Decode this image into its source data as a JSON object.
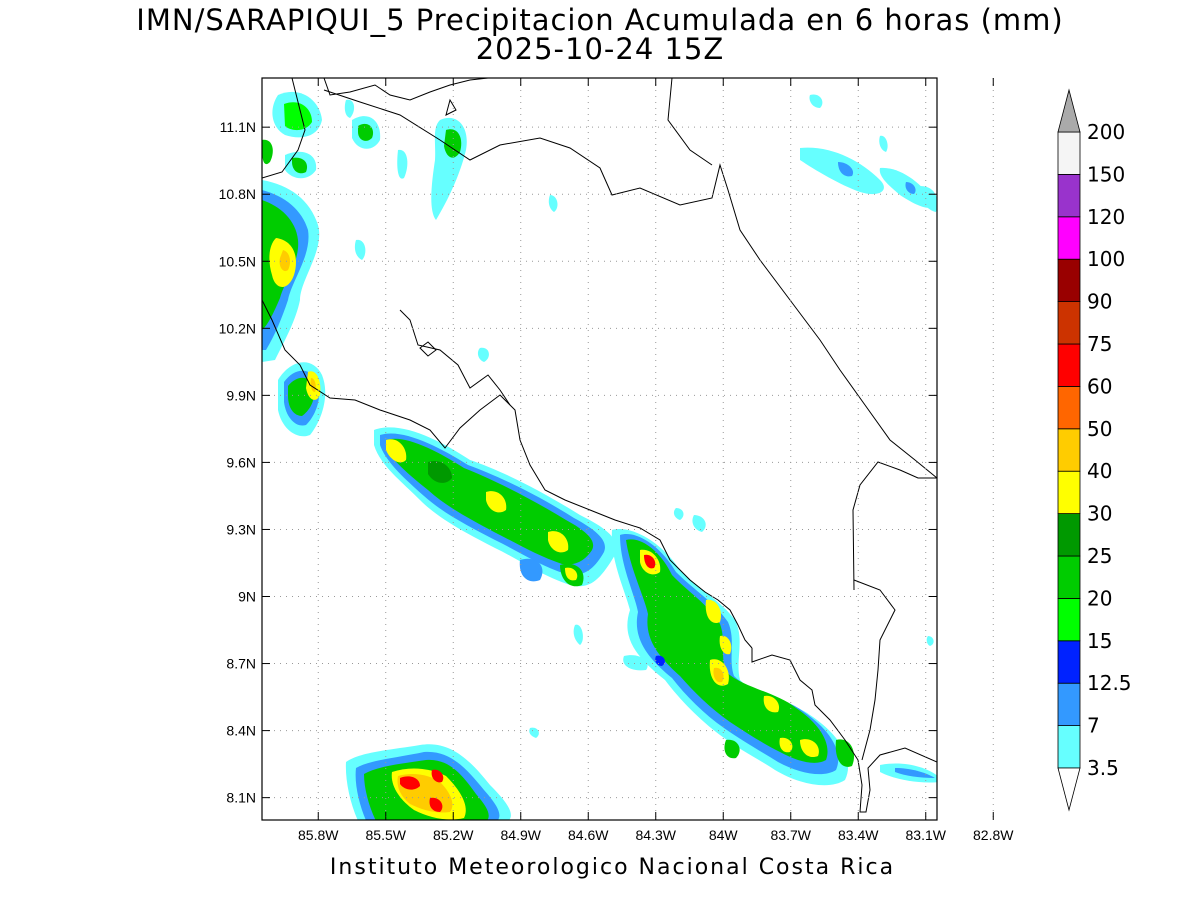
{
  "title": {
    "line1": "IMN/SARAPIQUI_5 Precipitacion Acumulada en 6 horas (mm)",
    "line2": "2025-10-24 15Z"
  },
  "footer": "Instituto Meteorologico Nacional Costa Rica",
  "map": {
    "lat_ticks": [
      "11.1N",
      "10.8N",
      "10.5N",
      "10.2N",
      "9.9N",
      "9.6N",
      "9.3N",
      "9N",
      "8.7N",
      "8.4N",
      "8.1N"
    ],
    "lat_values": [
      11.1,
      10.8,
      10.5,
      10.2,
      9.9,
      9.6,
      9.3,
      9.0,
      8.7,
      8.4,
      8.1
    ],
    "lon_ticks": [
      "85.8W",
      "85.5W",
      "85.2W",
      "84.9W",
      "84.6W",
      "84.3W",
      "84W",
      "83.7W",
      "83.4W",
      "83.1W",
      "82.8W"
    ],
    "lon_values": [
      -85.8,
      -85.5,
      -85.2,
      -84.9,
      -84.6,
      -84.3,
      -84.0,
      -83.7,
      -83.4,
      -83.1,
      -82.8
    ],
    "extent": {
      "lon_min": -86.05,
      "lon_max": -83.05,
      "lat_min": 8.0,
      "lat_max": 11.32
    },
    "grid": true
  },
  "colorbar": {
    "levels": [
      "3.5",
      "7",
      "12.5",
      "15",
      "20",
      "25",
      "30",
      "40",
      "50",
      "60",
      "75",
      "90",
      "100",
      "120",
      "150",
      "200"
    ],
    "colors": [
      "#66ffff",
      "#3399ff",
      "#0022ff",
      "#00ff00",
      "#00cc00",
      "#009900",
      "#ffff00",
      "#ffcc00",
      "#ff6600",
      "#ff0000",
      "#cc3300",
      "#990000",
      "#ff00ff",
      "#9933cc",
      "#f5f5f5",
      "#aaaaaa"
    ]
  }
}
